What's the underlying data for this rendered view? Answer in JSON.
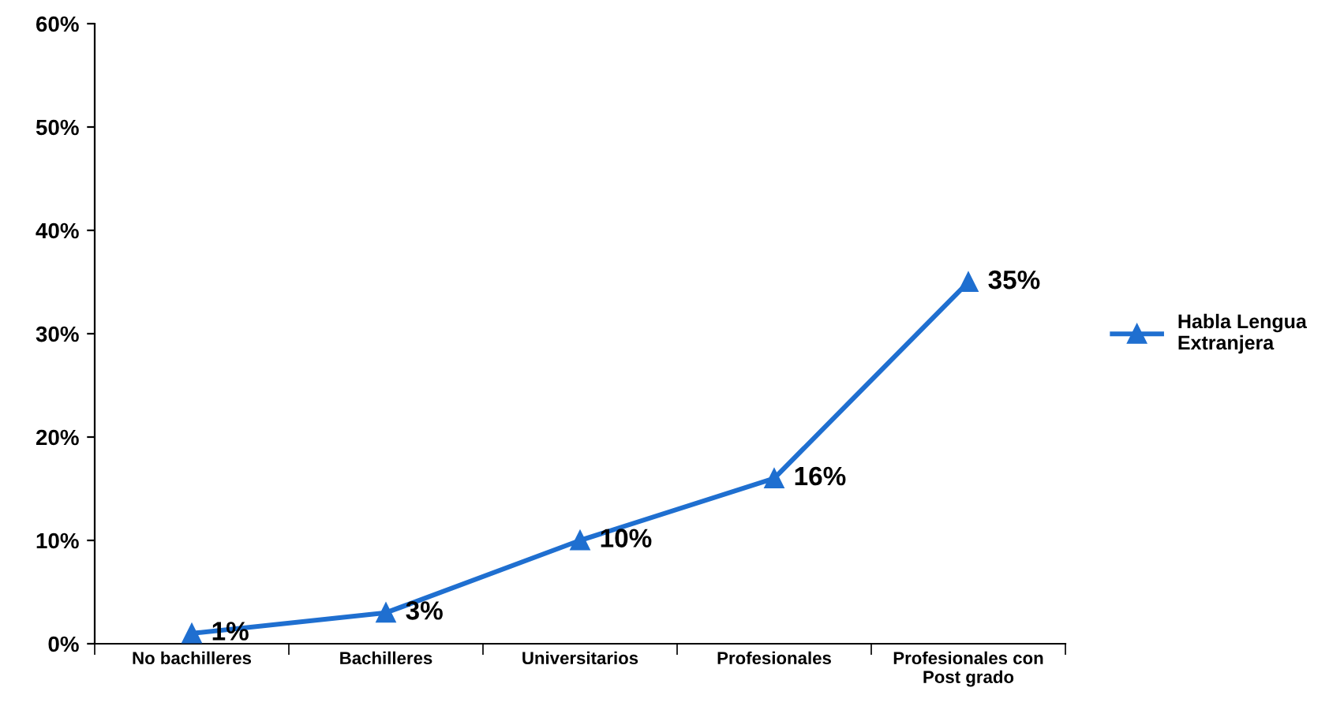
{
  "chart_data": {
    "type": "line",
    "categories": [
      "No bachilleres",
      "Bachilleres",
      "Universitarios",
      "Profesionales",
      "Profesionales con Post grado"
    ],
    "series": [
      {
        "name": "Habla Lengua Extranjera",
        "color": "#1f6fd0",
        "values": [
          1,
          3,
          10,
          16,
          35
        ],
        "value_labels": [
          "1%",
          "3%",
          "10%",
          "16%",
          "35%"
        ]
      }
    ],
    "ylim": [
      0,
      60
    ],
    "yticks": [
      {
        "value": 0,
        "label": "0%"
      },
      {
        "value": 10,
        "label": "10%"
      },
      {
        "value": 20,
        "label": "20%"
      },
      {
        "value": 30,
        "label": "30%"
      },
      {
        "value": 40,
        "label": "40%"
      },
      {
        "value": 50,
        "label": "50%"
      },
      {
        "value": 60,
        "label": "60%"
      }
    ],
    "grid": false,
    "legend": "right",
    "marker": "triangle",
    "line_style": "solid"
  }
}
